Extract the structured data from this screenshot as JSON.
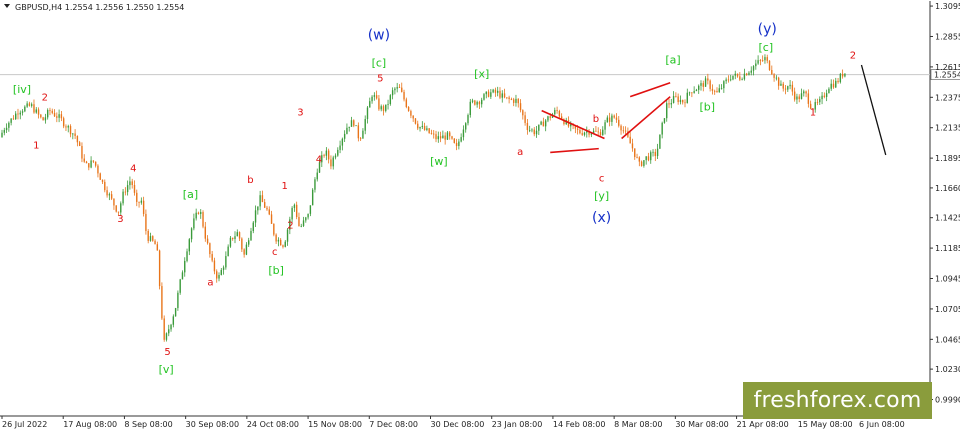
{
  "header": {
    "symbol_line": "GBPUSD,H4  1.2554 1.2556 1.2550 1.2554"
  },
  "logo": {
    "text": "freshforex.com"
  },
  "colors": {
    "bull": "#3a9a3a",
    "bear": "#e8741a",
    "red_wave": "#e01010",
    "green_wave": "#22c322",
    "blue_wave": "#1530c8",
    "projection": "#111111",
    "logo_bg": "#8a9c3c",
    "price_line": "#c8c8c8"
  },
  "chart_data": {
    "type": "line",
    "title": "GBPUSD,H4  1.2554 1.2556 1.2550 1.2554",
    "ylim": [
      0.986,
      1.3135
    ],
    "y_ticks": [
      "1.3095",
      "1.2855",
      "1.2615",
      "1.2375",
      "1.2135",
      "1.1895",
      "1.1660",
      "1.1425",
      "1.1185",
      "1.0945",
      "1.0705",
      "1.0465",
      "1.0230",
      "0.9990"
    ],
    "x_ticks": [
      "26 Jul 2022",
      "17 Aug 08:00",
      "8 Sep 08:00",
      "30 Sep 08:00",
      "24 Oct 08:00",
      "15 Nov 08:00",
      "7 Dec 08:00",
      "30 Dec 08:00",
      "23 Jan 08:00",
      "14 Feb 08:00",
      "8 Mar 08:00",
      "30 Mar 08:00",
      "21 Apr 08:00",
      "15 May 08:00",
      "6 Jun 08:00"
    ],
    "current_price": {
      "label": "1.2554",
      "value": 1.2554
    },
    "series": [
      {
        "x": [
          0,
          0.4,
          0.9,
          1.3,
          2.2,
          3.0,
          3.5,
          4.2,
          5.3,
          6.0,
          6.6,
          7.2,
          7.8,
          8.3,
          8.7,
          9.2,
          9.6,
          9.9,
          10.3,
          11.0,
          11.5,
          12.3,
          13.0,
          13.5,
          14.0,
          14.4,
          14.9,
          15.3,
          15.8,
          16.2,
          16.7,
          17.1,
          17.6,
          18.2,
          18.7,
          19.3,
          19.9,
          20.6,
          21.0,
          21.6,
          22.2,
          22.8,
          23.2,
          23.7,
          24.4,
          24.8,
          25.2,
          25.6,
          26.1,
          26.6,
          27.0,
          27.6,
          28.0,
          28.6,
          29.3,
          30.0,
          30.6,
          31.4,
          32.0,
          32.5,
          33.0,
          33.6,
          34.3,
          34.9,
          35.4,
          36.2,
          37.0,
          37.5,
          38.2,
          39.0,
          39.8,
          40.6,
          41.3,
          42.0,
          42.6,
          43.1,
          43.7,
          44.3,
          44.8,
          45.3,
          46.0,
          46.7,
          47.3,
          47.9,
          48.4,
          48.9,
          49.5,
          50.2,
          50.8,
          51.3,
          51.8,
          52.4,
          53.0,
          53.6,
          54.2,
          54.8,
          55.3,
          55.8,
          56.4,
          56.9,
          57.5,
          58.1,
          58.6,
          59.1
        ],
        "y": [
          1.206,
          1.215,
          1.221,
          1.227,
          1.231,
          1.219,
          1.227,
          1.221,
          1.207,
          1.183,
          1.187,
          1.17,
          1.157,
          1.147,
          1.163,
          1.173,
          1.152,
          1.157,
          1.128,
          1.12,
          1.043,
          1.071,
          1.113,
          1.137,
          1.15,
          1.128,
          1.105,
          1.094,
          1.109,
          1.126,
          1.131,
          1.112,
          1.135,
          1.158,
          1.149,
          1.127,
          1.121,
          1.155,
          1.134,
          1.144,
          1.18,
          1.195,
          1.185,
          1.199,
          1.216,
          1.218,
          1.204,
          1.22,
          1.241,
          1.229,
          1.228,
          1.244,
          1.244,
          1.229,
          1.215,
          1.21,
          1.205,
          1.207,
          1.197,
          1.215,
          1.233,
          1.235,
          1.241,
          1.241,
          1.236,
          1.235,
          1.213,
          1.21,
          1.219,
          1.227,
          1.215,
          1.21,
          1.211,
          1.209,
          1.22,
          1.222,
          1.211,
          1.198,
          1.184,
          1.19,
          1.193,
          1.231,
          1.237,
          1.234,
          1.243,
          1.245,
          1.25,
          1.24,
          1.249,
          1.255,
          1.253,
          1.258,
          1.264,
          1.268,
          1.256,
          1.244,
          1.247,
          1.236,
          1.241,
          1.229,
          1.234,
          1.247,
          1.249,
          1.257
        ]
      }
    ],
    "wave_labels": [
      {
        "text": "[iv]",
        "color": "green",
        "x": 1.4,
        "y": 1.241
      },
      {
        "text": "1",
        "color": "red",
        "x": 2.4,
        "y": 1.197
      },
      {
        "text": "2",
        "color": "red",
        "x": 3.0,
        "y": 1.235
      },
      {
        "text": "4",
        "color": "red",
        "x": 9.2,
        "y": 1.179
      },
      {
        "text": "3",
        "color": "red",
        "x": 8.3,
        "y": 1.139
      },
      {
        "text": "[a]",
        "color": "green",
        "x": 13.2,
        "y": 1.158
      },
      {
        "text": "b",
        "color": "red",
        "x": 17.4,
        "y": 1.17
      },
      {
        "text": "a",
        "color": "red",
        "x": 14.6,
        "y": 1.089
      },
      {
        "text": "1",
        "color": "red",
        "x": 19.8,
        "y": 1.165
      },
      {
        "text": "2",
        "color": "red",
        "x": 20.2,
        "y": 1.134
      },
      {
        "text": "c",
        "color": "red",
        "x": 19.1,
        "y": 1.113
      },
      {
        "text": "[b]",
        "color": "green",
        "x": 19.2,
        "y": 1.098
      },
      {
        "text": "3",
        "color": "red",
        "x": 20.9,
        "y": 1.223
      },
      {
        "text": "4",
        "color": "red",
        "x": 22.2,
        "y": 1.186
      },
      {
        "text": "5",
        "color": "red",
        "x": 11.6,
        "y": 1.034
      },
      {
        "text": "[v]",
        "color": "green",
        "x": 11.5,
        "y": 1.02
      },
      {
        "text": "(w)",
        "color": "blue",
        "x": 26.4,
        "y": 1.283
      },
      {
        "text": "[c]",
        "color": "green",
        "x": 26.4,
        "y": 1.262
      },
      {
        "text": "5",
        "color": "red",
        "x": 26.5,
        "y": 1.25
      },
      {
        "text": "[w]",
        "color": "green",
        "x": 30.6,
        "y": 1.184
      },
      {
        "text": "[x]",
        "color": "green",
        "x": 33.6,
        "y": 1.253
      },
      {
        "text": "a",
        "color": "red",
        "x": 36.3,
        "y": 1.192
      },
      {
        "text": "b",
        "color": "red",
        "x": 41.6,
        "y": 1.218
      },
      {
        "text": "c",
        "color": "red",
        "x": 42.0,
        "y": 1.171
      },
      {
        "text": "[y]",
        "color": "green",
        "x": 42.0,
        "y": 1.157
      },
      {
        "text": "(x)",
        "color": "blue",
        "x": 42.0,
        "y": 1.139
      },
      {
        "text": "[a]",
        "color": "green",
        "x": 47.0,
        "y": 1.264
      },
      {
        "text": "[b]",
        "color": "green",
        "x": 49.4,
        "y": 1.227
      },
      {
        "text": "(y)",
        "color": "blue",
        "x": 53.6,
        "y": 1.288
      },
      {
        "text": "[c]",
        "color": "green",
        "x": 53.5,
        "y": 1.274
      },
      {
        "text": "1",
        "color": "red",
        "x": 56.8,
        "y": 1.223
      },
      {
        "text": "2",
        "color": "red",
        "x": 59.6,
        "y": 1.268
      }
    ],
    "triangle_lines": [
      {
        "x1": 37.8,
        "y1": 1.227,
        "x2": 42.2,
        "y2": 1.205
      },
      {
        "x1": 38.4,
        "y1": 1.194,
        "x2": 41.8,
        "y2": 1.197
      }
    ],
    "channel_lines": [
      {
        "x1": 43.4,
        "y1": 1.205,
        "x2": 46.8,
        "y2": 1.238
      },
      {
        "x1": 44.0,
        "y1": 1.238,
        "x2": 46.8,
        "y2": 1.249
      }
    ],
    "projection_line": {
      "x1": 60.2,
      "y1": 1.263,
      "x2": 61.9,
      "y2": 1.192
    },
    "x_range": [
      0,
      65
    ]
  }
}
